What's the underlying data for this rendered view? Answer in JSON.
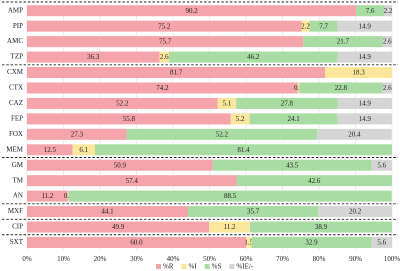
{
  "chart_data": {
    "type": "stacked-bar-horizontal",
    "categories": [
      "AMP",
      "PIP",
      "AMC",
      "TZP",
      "CXM",
      "CTX",
      "CAZ",
      "FEP",
      "FOX",
      "MEM",
      "GM",
      "TM",
      "AN",
      "MXF",
      "CIP",
      "SXT"
    ],
    "series": [
      {
        "name": "%R",
        "color": "#f4a4aa",
        "values": [
          90.2,
          75.2,
          75.7,
          36.3,
          81.7,
          74.2,
          52.2,
          55.8,
          27.3,
          12.5,
          50.9,
          57.4,
          11.2,
          44.1,
          49.9,
          60.0
        ],
        "value_labels": [
          "90.2",
          "75.2",
          "75.7",
          "36.3",
          "81.7",
          "74.2",
          "52.2",
          "55.8",
          "27.3",
          "12.5",
          "50.9",
          "57.4",
          "11.2",
          "44.1",
          "49.9",
          "60.0"
        ]
      },
      {
        "name": "%I",
        "color": "#fbe79c",
        "values": [
          null,
          2.2,
          null,
          2.6,
          18.3,
          0.4,
          5.1,
          5.2,
          null,
          6.1,
          null,
          null,
          0.2,
          null,
          11.2,
          1.5
        ]
      },
      {
        "name": "%S",
        "color": "#a9dca2",
        "values": [
          7.6,
          7.7,
          21.7,
          46.2,
          null,
          22.8,
          27.8,
          24.1,
          52.2,
          81.4,
          43.5,
          42.6,
          88.5,
          35.7,
          38.9,
          32.9
        ]
      },
      {
        "name": "%IE/-",
        "color": "#d5d5d5",
        "values": [
          2.2,
          14.9,
          2.6,
          14.9,
          null,
          2.6,
          14.9,
          14.9,
          20.4,
          null,
          5.6,
          null,
          null,
          20.2,
          null,
          5.6
        ]
      }
    ],
    "xlim": [
      0,
      100
    ],
    "xticks": [
      {
        "value": 0,
        "label": "0%"
      },
      {
        "value": 10,
        "label": "10%"
      },
      {
        "value": 20,
        "label": "20%"
      },
      {
        "value": 30,
        "label": "30%"
      },
      {
        "value": 40,
        "label": "40%"
      },
      {
        "value": 50,
        "label": "50%"
      },
      {
        "value": 60,
        "label": "60%"
      },
      {
        "value": 70,
        "label": "70%"
      },
      {
        "value": 80,
        "label": "80%"
      },
      {
        "value": 90,
        "label": "90%"
      },
      {
        "value": 100,
        "label": "100%"
      }
    ],
    "grid": true,
    "legend": "bottom"
  }
}
